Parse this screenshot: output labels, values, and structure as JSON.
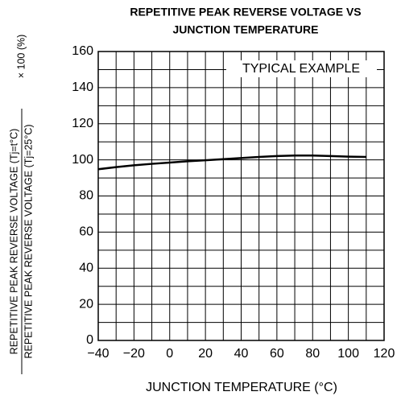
{
  "chart_data": {
    "type": "line",
    "title_lines": [
      "REPETITIVE PEAK REVERSE VOLTAGE VS",
      "JUNCTION TEMPERATURE"
    ],
    "y_label": {
      "numerator": "REPETITIVE PEAK REVERSE VOLTAGE (Tj=t°C)",
      "denominator": "REPETITIVE PEAK REVERSE VOLTAGE (Tj=25°C)",
      "multiplier": "× 100 (%)"
    },
    "x_label": "JUNCTION TEMPERATURE  (°C)",
    "annotation": "TYPICAL EXAMPLE",
    "x": [
      -40,
      -30,
      -20,
      -10,
      0,
      10,
      20,
      30,
      40,
      50,
      60,
      70,
      80,
      90,
      100,
      110
    ],
    "series": [
      {
        "name": "typical",
        "color": "#000000",
        "values": [
          94.8,
          96,
          97,
          97.8,
          98.5,
          99.2,
          99.8,
          100.4,
          101,
          101.6,
          102.1,
          102.4,
          102.4,
          102.1,
          101.8,
          101.6
        ]
      }
    ],
    "xlim": [
      -40,
      120
    ],
    "xticks": [
      {
        "value": -40,
        "label": "−40"
      },
      {
        "value": -20,
        "label": "−20"
      },
      0,
      20,
      40,
      60,
      80,
      100,
      120
    ],
    "xminor": [
      -30,
      -10,
      10,
      30,
      50,
      70,
      90,
      110
    ],
    "ylim": [
      0,
      160
    ],
    "yticks": [
      0,
      20,
      40,
      60,
      80,
      100,
      120,
      140,
      160
    ],
    "yminor": [
      10,
      30,
      50,
      70,
      90,
      110,
      130,
      150
    ],
    "grid": true
  }
}
